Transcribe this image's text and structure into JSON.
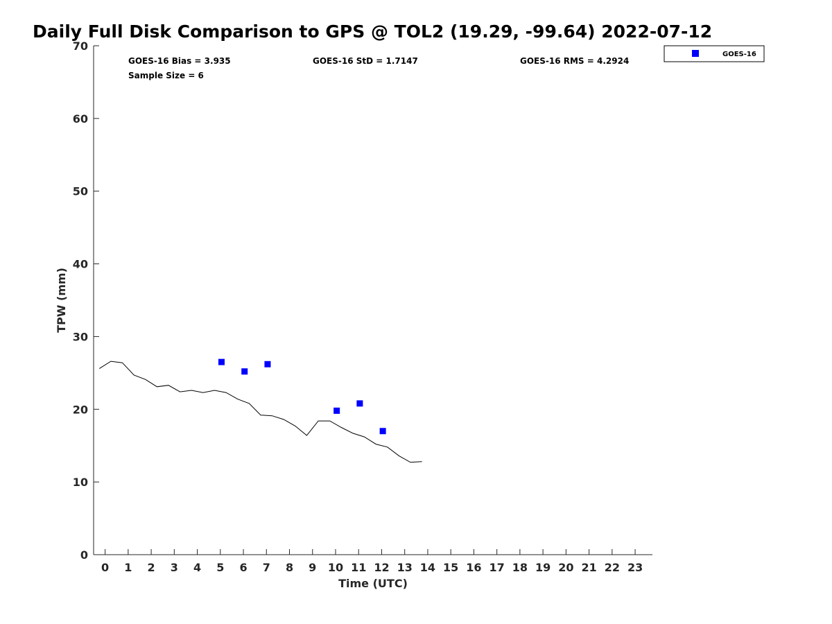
{
  "chart_data": {
    "type": "scatter",
    "title": "Daily Full Disk Comparison to GPS @ TOL2 (19.29, -99.64) 2022-07-12",
    "xlabel": "Time (UTC)",
    "ylabel": "TPW (mm)",
    "xlim": [
      -0.5,
      23.75
    ],
    "ylim": [
      0,
      70
    ],
    "x_ticks": [
      0,
      1,
      2,
      3,
      4,
      5,
      6,
      7,
      8,
      9,
      10,
      11,
      12,
      13,
      14,
      15,
      16,
      17,
      18,
      19,
      20,
      21,
      22,
      23
    ],
    "x_tick_labels": [
      "0",
      "1",
      "2",
      "3",
      "4",
      "5",
      "6",
      "7",
      "8",
      "9",
      "10",
      "11",
      "12",
      "13",
      "14",
      "15",
      "16",
      "17",
      "18",
      "19",
      "20",
      "21",
      "22",
      "23"
    ],
    "y_ticks": [
      0,
      10,
      20,
      30,
      40,
      50,
      60,
      70
    ],
    "y_tick_labels": [
      "0",
      "10",
      "20",
      "30",
      "40",
      "50",
      "60",
      "70"
    ],
    "grid": false,
    "legend_position": "top-right",
    "stats": {
      "bias": "GOES-16 Bias = 3.935",
      "std": "GOES-16 StD = 1.7147",
      "rms": "GOES-16 RMS = 4.2924",
      "sample": "Sample Size = 6"
    },
    "series": [
      {
        "name": "GOES-16",
        "kind": "scatter",
        "color": "#0000ff",
        "marker": "square",
        "x": [
          5.05,
          6.05,
          7.05,
          10.05,
          11.05,
          12.05
        ],
        "y": [
          26.5,
          25.2,
          26.2,
          19.8,
          20.8,
          17.0
        ]
      },
      {
        "kind": "line",
        "color": "#000000",
        "x": [
          -0.25,
          0.25,
          0.75,
          1.25,
          1.75,
          2.25,
          2.75,
          3.25,
          3.75,
          4.25,
          4.75,
          5.25,
          5.75,
          6.25,
          6.75,
          7.25,
          7.75,
          8.25,
          8.75,
          9.25,
          9.75,
          10.25,
          10.75,
          11.25,
          11.75,
          12.25,
          12.75,
          13.25,
          13.75
        ],
        "y": [
          25.6,
          26.6,
          26.4,
          24.7,
          24.1,
          23.1,
          23.3,
          22.4,
          22.6,
          22.3,
          22.6,
          22.3,
          21.4,
          20.8,
          19.2,
          19.1,
          18.6,
          17.7,
          16.4,
          18.4,
          18.4,
          17.5,
          16.7,
          16.2,
          15.2,
          14.8,
          13.6,
          12.7,
          12.8
        ]
      }
    ]
  }
}
